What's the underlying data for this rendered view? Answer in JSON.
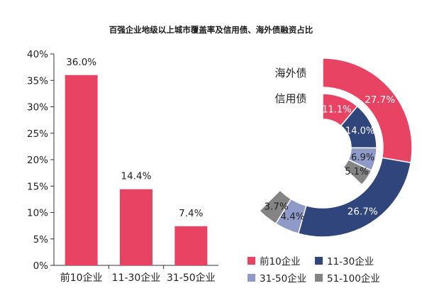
{
  "title": "百强企业地级以上城市覆盖率及信用债、海外债融资占比",
  "colors": {
    "c1": "#e84363",
    "c2": "#31457d",
    "c3": "#8f9ac8",
    "c4": "#848484"
  },
  "chart_data": [
    {
      "type": "bar",
      "categories": [
        "前10企业",
        "11-30企业",
        "31-50企业"
      ],
      "values": [
        36.0,
        14.4,
        7.4
      ],
      "value_labels": [
        "36.0%",
        "14.4%",
        "7.4%"
      ],
      "ylim": [
        0,
        40
      ],
      "yticks": [
        "0%",
        "5%",
        "10%",
        "15%",
        "20%",
        "25%",
        "30%",
        "35%",
        "40%"
      ],
      "grid": false
    },
    {
      "type": "pie",
      "variant": "nested-donut",
      "ring_labels": {
        "outer": "海外债",
        "inner": "信用债"
      },
      "legend": [
        "前10企业",
        "11-30企业",
        "31-50企业",
        "51-100企业"
      ],
      "legend_position": "bottom",
      "outer": [
        {
          "name": "前10企业",
          "value": 27.7,
          "label": "27.7%"
        },
        {
          "name": "11-30企业",
          "value": 26.7,
          "label": "26.7%"
        },
        {
          "name": "31-50企业",
          "value": 4.4,
          "label": "4.4%"
        },
        {
          "name": "51-100企业",
          "value": 3.7,
          "label": "3.7%"
        }
      ],
      "inner": [
        {
          "name": "前10企业",
          "value": 11.1,
          "label": "11.1%"
        },
        {
          "name": "11-30企业",
          "value": 14.0,
          "label": "14.0%"
        },
        {
          "name": "31-50企业",
          "value": 6.9,
          "label": "6.9%"
        },
        {
          "name": "51-100企业",
          "value": 5.1,
          "label": "5.1%"
        }
      ]
    }
  ]
}
